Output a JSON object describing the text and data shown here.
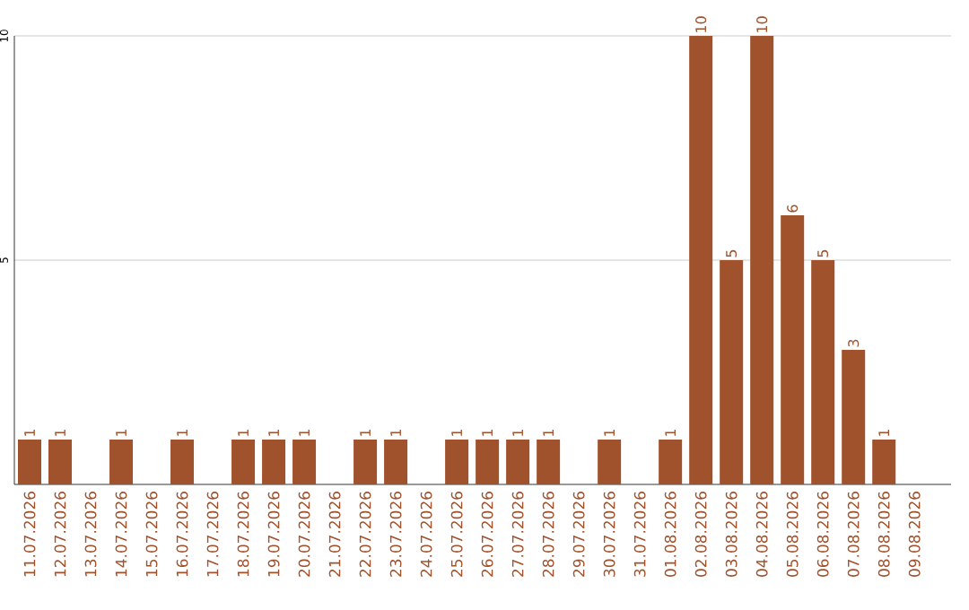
{
  "chart_data": {
    "type": "bar",
    "categories": [
      "11.07.2026",
      "12.07.2026",
      "13.07.2026",
      "14.07.2026",
      "15.07.2026",
      "16.07.2026",
      "17.07.2026",
      "18.07.2026",
      "19.07.2026",
      "20.07.2026",
      "21.07.2026",
      "22.07.2026",
      "23.07.2026",
      "24.07.2026",
      "25.07.2026",
      "26.07.2026",
      "27.07.2026",
      "28.07.2026",
      "29.07.2026",
      "30.07.2026",
      "31.07.2026",
      "01.08.2026",
      "02.08.2026",
      "03.08.2026",
      "04.08.2026",
      "05.08.2026",
      "06.08.2026",
      "07.08.2026",
      "08.08.2026",
      "09.08.2026"
    ],
    "values": [
      1,
      1,
      null,
      1,
      null,
      1,
      null,
      1,
      1,
      1,
      null,
      1,
      1,
      null,
      1,
      1,
      1,
      1,
      null,
      1,
      null,
      1,
      10,
      5,
      10,
      6,
      5,
      3,
      1,
      null
    ],
    "color": "#a0522d",
    "ylim": [
      0,
      10
    ],
    "yticks": [
      5,
      10
    ],
    "grid": "y",
    "data_labels": true
  }
}
